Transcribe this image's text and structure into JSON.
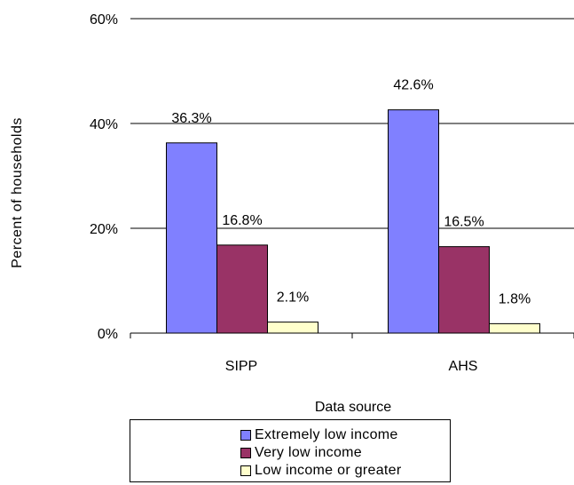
{
  "chart_data": {
    "type": "bar",
    "categories": [
      "SIPP",
      "AHS"
    ],
    "series": [
      {
        "name": "Extremely low income",
        "values": [
          36.3,
          42.6
        ],
        "color": "#8080ff"
      },
      {
        "name": "Very low income",
        "values": [
          16.8,
          16.5
        ],
        "color": "#993366"
      },
      {
        "name": "Low income or greater",
        "values": [
          2.1,
          1.8
        ],
        "color": "#ffffcc"
      }
    ],
    "data_labels": [
      [
        "36.3%",
        "42.6%"
      ],
      [
        "16.8%",
        "16.5%"
      ],
      [
        "2.1%",
        "1.8%"
      ]
    ],
    "xlabel": "Data source",
    "ylabel": "Percent of households",
    "ylim": [
      0,
      60
    ],
    "yticks": [
      0,
      20,
      40,
      60
    ],
    "ytick_labels": [
      "0%",
      "20%",
      "40%",
      "60%"
    ],
    "grid": true,
    "legend_position": "bottom"
  }
}
